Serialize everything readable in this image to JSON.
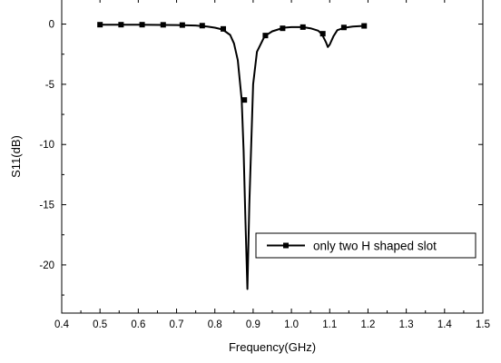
{
  "chart_data": {
    "type": "line",
    "xlabel": "Frequency(GHz)",
    "ylabel": "S11(dB)",
    "xlim": [
      0.4,
      1.5
    ],
    "ylim": [
      -24,
      2
    ],
    "x_ticks": [
      0.4,
      0.5,
      0.6,
      0.7,
      0.8,
      0.9,
      1.0,
      1.1,
      1.2,
      1.3,
      1.4,
      1.5
    ],
    "x_tick_labels": [
      "0.4",
      "0.5",
      "0.6",
      "0.7",
      "0.8",
      "0.9",
      "1.0",
      "1.1",
      "1.2",
      "1.3",
      "1.4",
      "1.5"
    ],
    "y_ticks": [
      0,
      -5,
      -10,
      -15,
      -20
    ],
    "y_tick_labels": [
      "0",
      "-5",
      "-10",
      "-15",
      "-20"
    ],
    "grid": false,
    "legend_position": "right",
    "series": [
      {
        "name": "only two H shaped slot",
        "color": "#000000",
        "marker": "square",
        "x": [
          0.5,
          0.6,
          0.7,
          0.75,
          0.78,
          0.8,
          0.82,
          0.84,
          0.85,
          0.86,
          0.87,
          0.875,
          0.88,
          0.885,
          0.89,
          0.9,
          0.91,
          0.93,
          0.95,
          0.98,
          1.0,
          1.03,
          1.05,
          1.07,
          1.08,
          1.09,
          1.095,
          1.1,
          1.11,
          1.12,
          1.14,
          1.16,
          1.19
        ],
        "y": [
          -0.05,
          -0.05,
          -0.08,
          -0.12,
          -0.2,
          -0.3,
          -0.45,
          -0.9,
          -1.6,
          -3.0,
          -6.3,
          -10.5,
          -16.5,
          -22.0,
          -15.0,
          -5.0,
          -2.3,
          -1.0,
          -0.6,
          -0.3,
          -0.25,
          -0.25,
          -0.35,
          -0.55,
          -0.85,
          -1.5,
          -1.9,
          -1.7,
          -1.0,
          -0.5,
          -0.3,
          -0.2,
          -0.15
        ]
      }
    ],
    "markers": {
      "x": [
        0.5,
        0.555,
        0.61,
        0.665,
        0.715,
        0.767,
        0.822,
        0.877,
        0.932,
        0.977,
        1.03,
        1.082,
        1.137,
        1.19
      ],
      "y": [
        -0.05,
        -0.05,
        -0.05,
        -0.06,
        -0.08,
        -0.13,
        -0.4,
        -6.3,
        -0.95,
        -0.35,
        -0.25,
        -0.8,
        -0.28,
        -0.15
      ]
    }
  }
}
